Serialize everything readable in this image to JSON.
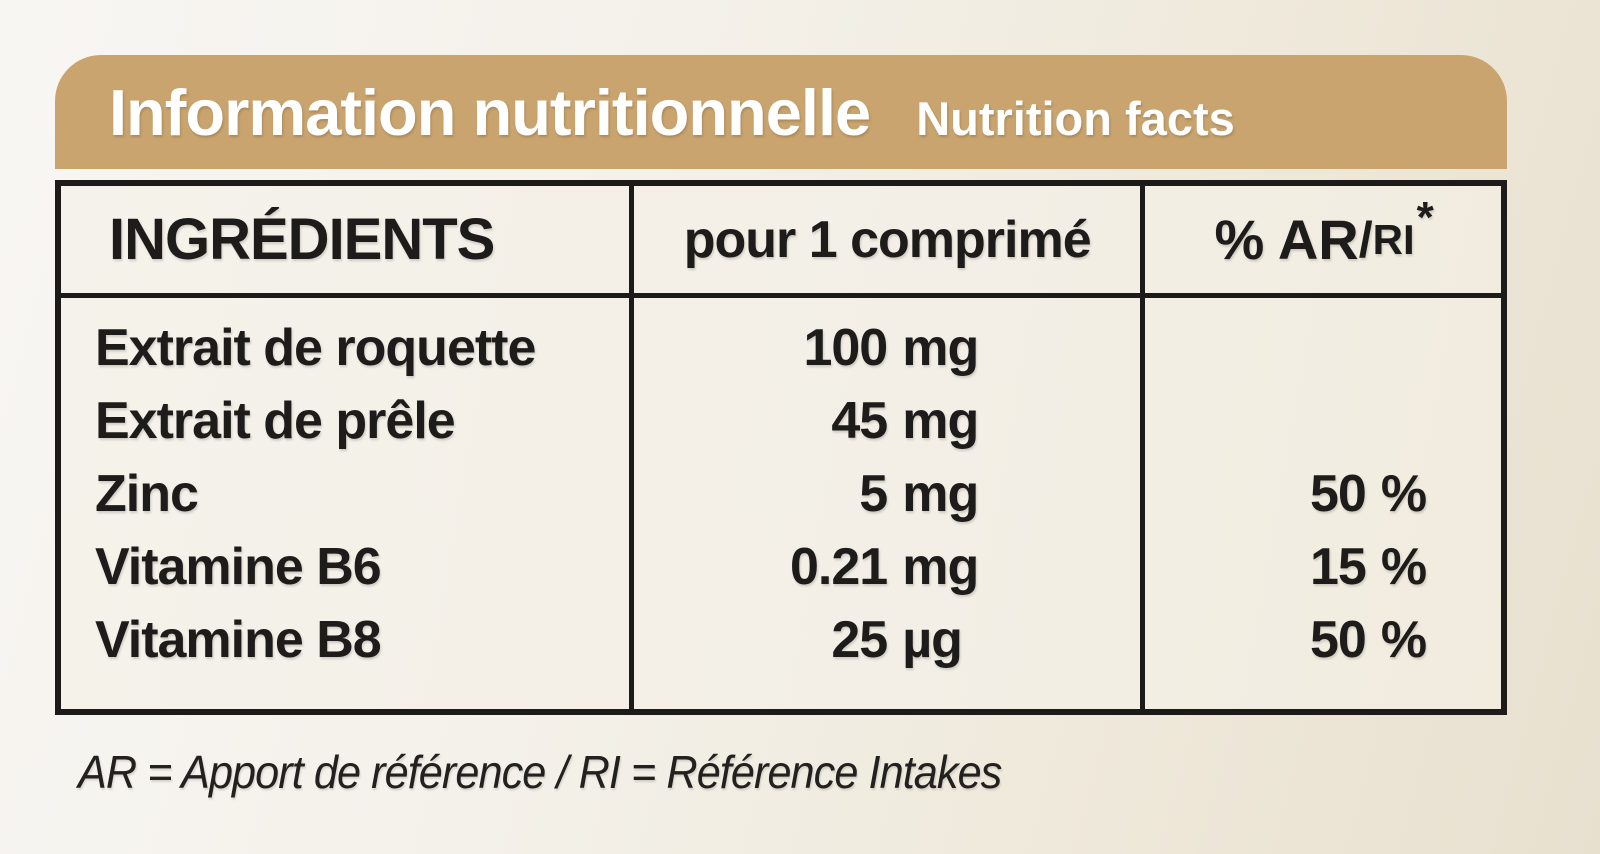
{
  "page": {
    "header": {
      "title_fr": "Information nutritionnelle",
      "title_en": "Nutrition facts"
    },
    "table": {
      "columns": {
        "ingredients": "INGRÉDIENTS",
        "per_tablet": "pour 1 comprimé",
        "percent_main": "% AR",
        "percent_slash": "/",
        "percent_small": "RI",
        "percent_asterisk": "*"
      },
      "rows": [
        {
          "name": "Extrait de roquette",
          "amount": "100",
          "unit": "mg",
          "pct_num": "",
          "pct_sign": ""
        },
        {
          "name": "Extrait de prêle",
          "amount": "45",
          "unit": "mg",
          "pct_num": "",
          "pct_sign": ""
        },
        {
          "name": "Zinc",
          "amount": "5",
          "unit": "mg",
          "pct_num": "50",
          "pct_sign": "%"
        },
        {
          "name": "Vitamine B6",
          "amount": "0.21",
          "unit": "mg",
          "pct_num": "15",
          "pct_sign": "%"
        },
        {
          "name": "Vitamine B8",
          "amount": "25",
          "unit": "µg",
          "pct_num": "50",
          "pct_sign": "%"
        }
      ]
    },
    "footnote": "AR = Apport de référence / RI = Référence Intakes",
    "colors": {
      "accent_tan": "#c9a46f",
      "title_text": "#ffffff",
      "table_text": "#1d1c1a",
      "table_border": "#1c1b19",
      "background_left": "#f8f6f3",
      "background_right": "#e8e0cf",
      "panel_cream": "#f3efe6"
    }
  }
}
